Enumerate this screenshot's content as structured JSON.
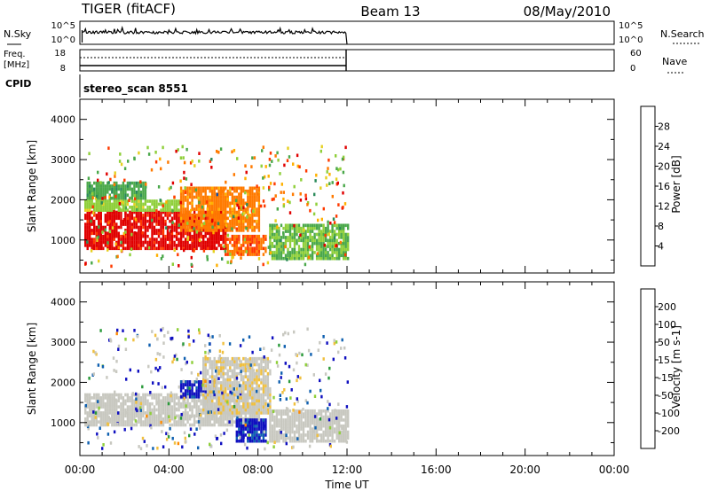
{
  "header": {
    "title": "TIGER (fitACF)",
    "beam": "Beam 13",
    "date": "08/May/2010"
  },
  "aux": {
    "nsky_label": "N.Sky",
    "nsearch_label": "N.Search",
    "nsky_ticks": [
      "10^5",
      "10^0"
    ],
    "nsearch_ticks": [
      "10^5",
      "10^0"
    ],
    "freq_label": "Freq.",
    "freq_unit": "[MHz]",
    "freq_ticks": [
      "18",
      "8"
    ],
    "nave_label": "Nave",
    "nave_ticks": [
      "60",
      "0"
    ],
    "cpid_label": "CPID",
    "cpid_value": "stereo_scan 8551"
  },
  "time_axis": {
    "xlabel": "Time UT",
    "ticks": [
      "00:00",
      "04:00",
      "08:00",
      "12:00",
      "16:00",
      "20:00",
      "00:00"
    ],
    "range_hours": [
      0,
      24
    ],
    "data_end_hours": 12
  },
  "chart_data": [
    {
      "type": "heatmap",
      "ylabel": "Slant Range [km]",
      "yticks": [
        "4000",
        "3000",
        "2000",
        "1000"
      ],
      "ylim": [
        180,
        4500
      ],
      "colorbar": {
        "label": "Power [dB]",
        "ticks": [
          "28",
          "24",
          "20",
          "16",
          "12",
          "8",
          "4"
        ],
        "range": [
          0,
          30
        ],
        "colors": [
          "#0000d0",
          "#1050b0",
          "#2a8a5a",
          "#4aa84a",
          "#8fcf3a",
          "#e6d020",
          "#ffb000",
          "#ff7a00",
          "#ff3a00",
          "#e00000"
        ]
      },
      "regions": [
        {
          "t0": 0.2,
          "t1": 6.5,
          "r0": 750,
          "r1": 1700,
          "value": 28
        },
        {
          "t0": 0.2,
          "t1": 4.5,
          "r0": 1700,
          "r1": 1950,
          "value": 14
        },
        {
          "t0": 4.5,
          "t1": 8.0,
          "r0": 1200,
          "r1": 2300,
          "value": 22
        },
        {
          "t0": 6.5,
          "t1": 8.3,
          "r0": 600,
          "r1": 1100,
          "value": 24
        },
        {
          "t0": 8.5,
          "t1": 12.0,
          "r0": 500,
          "r1": 1400,
          "value": 12
        },
        {
          "t0": 0.3,
          "t1": 3.0,
          "r0": 2000,
          "r1": 2400,
          "value": 10
        }
      ]
    },
    {
      "type": "heatmap",
      "ylabel": "Slant Range [km]",
      "yticks": [
        "4000",
        "3000",
        "2000",
        "1000"
      ],
      "ylim": [
        180,
        4500
      ],
      "colorbar": {
        "label": "Velocity [m s-1]",
        "ticks": [
          "200",
          "100",
          "50",
          "15",
          "-15",
          "-50",
          "-100",
          "-200"
        ],
        "range": [
          -250,
          250
        ],
        "colors": [
          "#e00000",
          "#ff4a00",
          "#ff8a00",
          "#f0c040",
          "#c8c8c0",
          "#c8c8c0",
          "#8fcf3a",
          "#2a9a3a",
          "#1060b0",
          "#1010c0"
        ]
      },
      "regions": [
        {
          "t0": 0.2,
          "t1": 8.0,
          "r0": 900,
          "r1": 1700,
          "value": 0
        },
        {
          "t0": 4.5,
          "t1": 6.0,
          "r0": 1600,
          "r1": 2000,
          "value": 210
        },
        {
          "t0": 7.0,
          "t1": 8.3,
          "r0": 500,
          "r1": 1100,
          "value": 210
        },
        {
          "t0": 5.5,
          "t1": 8.5,
          "r0": 1200,
          "r1": 2600,
          "value": -40
        },
        {
          "t0": 8.5,
          "t1": 12.0,
          "r0": 500,
          "r1": 1300,
          "value": 0
        }
      ]
    }
  ]
}
